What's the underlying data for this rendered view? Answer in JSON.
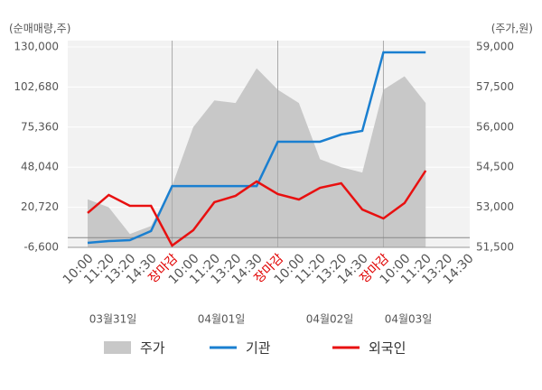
{
  "chart_data": {
    "type": "line",
    "y_label": "(순매매량,주)",
    "y2_label": "(주가,원)",
    "categories": [
      "10:00",
      "11:20",
      "13:20",
      "14:30",
      "장마감",
      "10:00",
      "11:20",
      "13:20",
      "14:30",
      "장마감",
      "10:00",
      "11:20",
      "13:20",
      "14:30",
      "장마감",
      "10:00",
      "11:20",
      "13:20",
      "14:30"
    ],
    "date_labels": [
      "03월31일",
      "04월01일",
      "04월02일",
      "04월03일"
    ],
    "ylim": [
      -6600,
      130000
    ],
    "yticks": [
      {
        "value": -6600,
        "label": "-6,600"
      },
      {
        "value": 20720,
        "label": "20,720"
      },
      {
        "value": 48040,
        "label": "48,040"
      },
      {
        "value": 75360,
        "label": "75,360"
      },
      {
        "value": 102680,
        "label": "102,680"
      },
      {
        "value": 130000,
        "label": "130,000"
      }
    ],
    "y2lim": [
      51500,
      59000
    ],
    "y2ticks": [
      {
        "value": 51500,
        "label": "51,500"
      },
      {
        "value": 53000,
        "label": "53,000"
      },
      {
        "value": 54500,
        "label": "54,500"
      },
      {
        "value": 56000,
        "label": "56,000"
      },
      {
        "value": 57500,
        "label": "57,500"
      },
      {
        "value": 59000,
        "label": "59,000"
      }
    ],
    "highlight_color": "#e00000",
    "series": [
      {
        "name": "주가",
        "color": "#c8c8c8",
        "kind": "area",
        "axis": "y2",
        "values": [
          53300,
          53000,
          52000,
          52300,
          53800,
          56000,
          57000,
          56900,
          58200,
          57400,
          56900,
          54800,
          54500,
          54300,
          57400,
          57900,
          56900,
          null,
          null
        ]
      },
      {
        "name": "기관",
        "color": "#1a7fd0",
        "kind": "line",
        "values": [
          -3500,
          -2300,
          -1700,
          4500,
          35200,
          35200,
          35200,
          35200,
          35200,
          65400,
          65400,
          65400,
          70300,
          72800,
          126300,
          126300,
          126300,
          null,
          null
        ]
      },
      {
        "name": "외국인",
        "color": "#e81010",
        "kind": "line",
        "values": [
          16800,
          29100,
          21700,
          21700,
          -5400,
          5100,
          24200,
          28500,
          38300,
          29700,
          26000,
          34000,
          37100,
          19200,
          13100,
          23600,
          45700,
          null,
          null
        ]
      }
    ]
  }
}
